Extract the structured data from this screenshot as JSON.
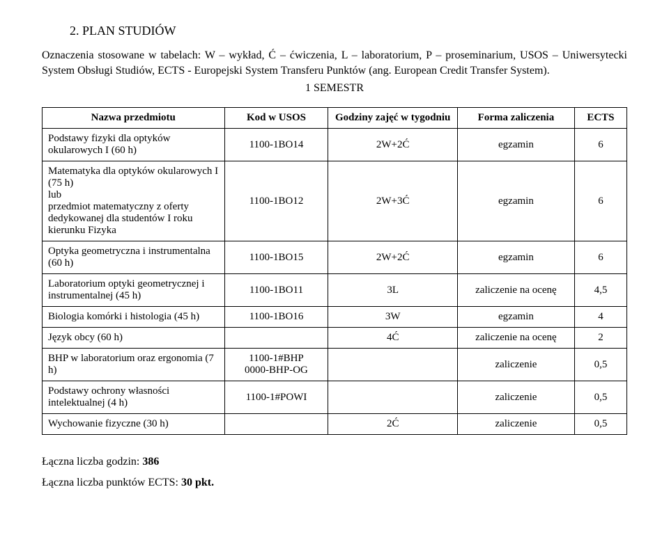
{
  "heading": "2.  PLAN STUDIÓW",
  "intro_line1": "Oznaczenia stosowane w tabelach: W – wykład, Ć – ćwiczenia, L – laboratorium, P – proseminarium, USOS – Uniwersytecki System Obsługi Studiów, ECTS - Europejski System Transferu Punktów (ang. European Credit Transfer System).",
  "semestr_label": "1 SEMESTR",
  "columns": {
    "name": "Nazwa przedmiotu",
    "code": "Kod w USOS",
    "hours": "Godziny zajęć w tygodniu",
    "form": "Forma zaliczenia",
    "ects": "ECTS"
  },
  "rows": [
    {
      "name": "Podstawy fizyki dla optyków okularowych I (60 h)",
      "code": "1100-1BO14",
      "hours": "2W+2Ć",
      "form": "egzamin",
      "ects": "6"
    },
    {
      "name": "Matematyka dla optyków okularowych I (75 h)\nlub\nprzedmiot matematyczny z oferty dedykowanej dla studentów I roku kierunku Fizyka",
      "code": "1100-1BO12",
      "hours": "2W+3Ć",
      "form": "egzamin",
      "ects": "6"
    },
    {
      "name": "Optyka geometryczna i instrumentalna (60 h)",
      "code": "1100-1BO15",
      "hours": "2W+2Ć",
      "form": "egzamin",
      "ects": "6"
    },
    {
      "name": "Laboratorium optyki geometrycznej i instrumentalnej (45 h)",
      "code": "1100-1BO11",
      "hours": "3L",
      "form": "zaliczenie na ocenę",
      "ects": "4,5"
    },
    {
      "name": "Biologia komórki i histologia (45 h)",
      "code": "1100-1BO16",
      "hours": "3W",
      "form": "egzamin",
      "ects": "4"
    },
    {
      "name": "Język obcy (60 h)",
      "code": "",
      "hours": "4Ć",
      "form": "zaliczenie na ocenę",
      "ects": "2"
    },
    {
      "name": "BHP w laboratorium oraz ergonomia (7 h)",
      "code": "1100-1#BHP\n0000-BHP-OG",
      "hours": "",
      "form": "zaliczenie",
      "ects": "0,5"
    },
    {
      "name": "Podstawy ochrony własności intelektualnej (4 h)",
      "code": "1100-1#POWI",
      "hours": "",
      "form": "zaliczenie",
      "ects": "0,5"
    },
    {
      "name": "Wychowanie fizyczne (30 h)",
      "code": "",
      "hours": "2Ć",
      "form": "zaliczenie",
      "ects": "0,5"
    }
  ],
  "footer": {
    "hours_label": "Łączna liczba godzin: ",
    "hours_value": "386",
    "ects_label": "Łączna liczba punktów ECTS: ",
    "ects_value": "30 pkt."
  }
}
